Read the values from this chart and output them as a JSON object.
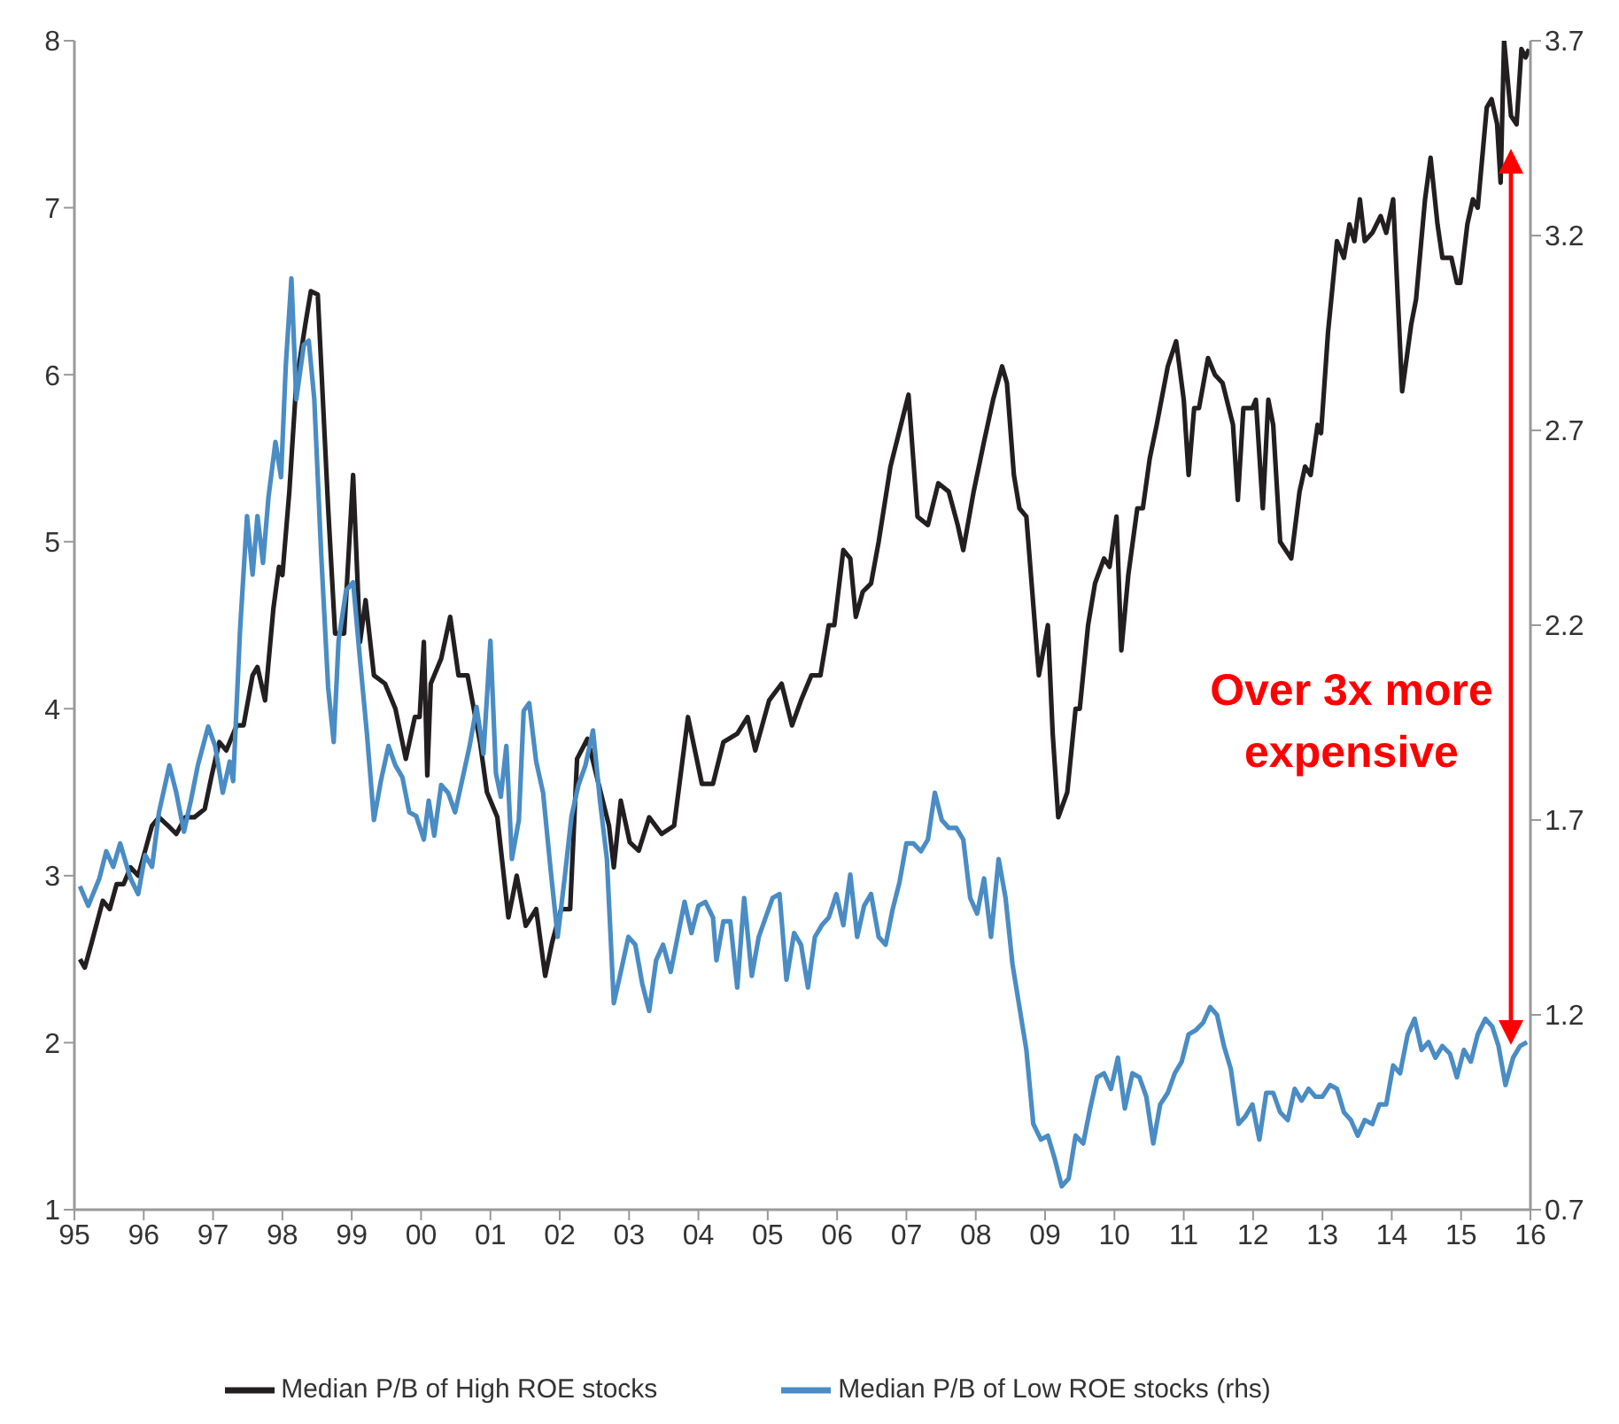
{
  "chart_data": {
    "type": "line",
    "xlim": [
      1995,
      2016
    ],
    "xticks": [
      {
        "value": 1995,
        "label": "95"
      },
      {
        "value": 1996,
        "label": "96"
      },
      {
        "value": 1997,
        "label": "97"
      },
      {
        "value": 1998,
        "label": "98"
      },
      {
        "value": 1999,
        "label": "99"
      },
      {
        "value": 2000,
        "label": "00"
      },
      {
        "value": 2001,
        "label": "01"
      },
      {
        "value": 2002,
        "label": "02"
      },
      {
        "value": 2003,
        "label": "03"
      },
      {
        "value": 2004,
        "label": "04"
      },
      {
        "value": 2005,
        "label": "05"
      },
      {
        "value": 2006,
        "label": "06"
      },
      {
        "value": 2007,
        "label": "07"
      },
      {
        "value": 2008,
        "label": "08"
      },
      {
        "value": 2009,
        "label": "09"
      },
      {
        "value": 2010,
        "label": "10"
      },
      {
        "value": 2011,
        "label": "11"
      },
      {
        "value": 2012,
        "label": "12"
      },
      {
        "value": 2013,
        "label": "13"
      },
      {
        "value": 2014,
        "label": "14"
      },
      {
        "value": 2015,
        "label": "15"
      },
      {
        "value": 2016,
        "label": "16"
      }
    ],
    "ylim": [
      1,
      8
    ],
    "yticks": [
      1,
      2,
      3,
      4,
      5,
      6,
      7,
      8
    ],
    "y2lim": [
      0.7,
      3.7
    ],
    "y2ticks": [
      0.7,
      1.2,
      1.7,
      2.2,
      2.7,
      3.2,
      3.7
    ],
    "grid": false,
    "legend": "bottom",
    "marker": "none",
    "line_style": "solid",
    "annotations": [
      "Over 3x more expensive"
    ],
    "series": [
      {
        "name": "Median P/B of High ROE stocks",
        "color": "#231f20",
        "x": [
          1995.08,
          1995.15,
          1995.25,
          1995.41,
          1995.51,
          1995.61,
          1995.71,
          1995.81,
          1995.92,
          1996.02,
          1996.12,
          1996.22,
          1996.35,
          1996.47,
          1996.6,
          1996.73,
          1996.88,
          1996.98,
          1997.09,
          1997.19,
          1997.34,
          1997.44,
          1997.57,
          1997.64,
          1997.75,
          1997.87,
          1997.95,
          1998.0,
          1998.1,
          1998.2,
          1998.33,
          1998.41,
          1998.51,
          1998.66,
          1998.76,
          1998.89,
          1999.02,
          1999.12,
          1999.2,
          1999.32,
          1999.48,
          1999.63,
          1999.73,
          1999.78,
          1999.91,
          1999.98,
          2000.04,
          2000.09,
          2000.14,
          2000.29,
          2000.42,
          2000.54,
          2000.67,
          2000.85,
          2000.95,
          2001.1,
          2001.26,
          2001.38,
          2001.51,
          2001.66,
          2001.79,
          2001.89,
          2002.02,
          2002.15,
          2002.25,
          2002.4,
          2002.53,
          2002.71,
          2002.78,
          2002.88,
          2003.01,
          2003.14,
          2003.29,
          2003.47,
          2003.65,
          2003.85,
          2004.05,
          2004.21,
          2004.36,
          2004.56,
          2004.71,
          2004.82,
          2005.02,
          2005.2,
          2005.35,
          2005.48,
          2005.63,
          2005.76,
          2005.88,
          2005.96,
          2006.09,
          2006.19,
          2006.27,
          2006.37,
          2006.49,
          2006.6,
          2006.77,
          2007.03,
          2007.16,
          2007.31,
          2007.46,
          2007.61,
          2007.74,
          2007.82,
          2007.97,
          2008.12,
          2008.25,
          2008.38,
          2008.45,
          2008.55,
          2008.63,
          2008.73,
          2008.91,
          2009.04,
          2009.11,
          2009.19,
          2009.32,
          2009.44,
          2009.5,
          2009.62,
          2009.72,
          2009.85,
          2009.93,
          2010.03,
          2010.1,
          2010.2,
          2010.33,
          2010.41,
          2010.51,
          2010.61,
          2010.77,
          2010.89,
          2011.0,
          2011.07,
          2011.15,
          2011.22,
          2011.35,
          2011.45,
          2011.56,
          2011.71,
          2011.78,
          2011.86,
          2011.99,
          2012.04,
          2012.14,
          2012.22,
          2012.29,
          2012.39,
          2012.55,
          2012.67,
          2012.75,
          2012.83,
          2012.93,
          2012.98,
          2013.08,
          2013.21,
          2013.31,
          2013.39,
          2013.46,
          2013.54,
          2013.61,
          2013.72,
          2013.84,
          2013.92,
          2014.02,
          2014.15,
          2014.28,
          2014.35,
          2014.48,
          2014.56,
          2014.66,
          2014.73,
          2014.86,
          2014.94,
          2014.99,
          2015.09,
          2015.17,
          2015.24,
          2015.37,
          2015.44,
          2015.52,
          2015.57,
          2015.62,
          2015.72,
          2015.8,
          2015.87,
          2015.93,
          2015.98
        ],
        "values": [
          2.5,
          2.45,
          2.6,
          2.85,
          2.8,
          2.95,
          2.95,
          3.05,
          3.0,
          3.15,
          3.3,
          3.35,
          3.3,
          3.25,
          3.35,
          3.35,
          3.4,
          3.6,
          3.8,
          3.75,
          3.9,
          3.9,
          4.2,
          4.25,
          4.05,
          4.6,
          4.85,
          4.8,
          5.3,
          5.95,
          6.3,
          6.5,
          6.48,
          5.2,
          4.45,
          4.45,
          5.4,
          4.4,
          4.65,
          4.2,
          4.15,
          4.0,
          3.8,
          3.7,
          3.95,
          3.95,
          4.4,
          3.6,
          4.15,
          4.3,
          4.55,
          4.2,
          4.2,
          3.8,
          3.5,
          3.35,
          2.75,
          3.0,
          2.7,
          2.8,
          2.4,
          2.6,
          2.8,
          2.8,
          3.7,
          3.82,
          3.6,
          3.3,
          3.05,
          3.45,
          3.2,
          3.15,
          3.35,
          3.25,
          3.3,
          3.95,
          3.55,
          3.55,
          3.8,
          3.85,
          3.95,
          3.75,
          4.05,
          4.15,
          3.9,
          4.05,
          4.2,
          4.2,
          4.5,
          4.5,
          4.95,
          4.9,
          4.55,
          4.7,
          4.75,
          5.0,
          5.45,
          5.88,
          5.15,
          5.1,
          5.35,
          5.3,
          5.1,
          4.95,
          5.3,
          5.6,
          5.85,
          6.05,
          5.95,
          5.4,
          5.2,
          5.15,
          4.2,
          4.5,
          3.85,
          3.35,
          3.5,
          4.0,
          4.0,
          4.5,
          4.75,
          4.9,
          4.85,
          5.15,
          4.35,
          4.8,
          5.2,
          5.2,
          5.5,
          5.7,
          6.05,
          6.2,
          5.85,
          5.4,
          5.8,
          5.8,
          6.1,
          6.0,
          5.95,
          5.7,
          5.25,
          5.8,
          5.8,
          5.85,
          5.2,
          5.85,
          5.7,
          5.0,
          4.9,
          5.3,
          5.45,
          5.4,
          5.7,
          5.65,
          6.25,
          6.8,
          6.7,
          6.9,
          6.8,
          7.05,
          6.8,
          6.85,
          6.95,
          6.85,
          7.05,
          5.9,
          6.3,
          6.45,
          7.05,
          7.3,
          6.9,
          6.7,
          6.7,
          6.55,
          6.55,
          6.9,
          7.05,
          7.0,
          7.6,
          7.65,
          7.5,
          7.15,
          8.0,
          7.55,
          7.5,
          7.95,
          7.9,
          7.95
        ]
      },
      {
        "name": "Median P/B of Low ROE stocks (rhs)",
        "color": "#4a8cc4",
        "axis": "y2",
        "x": [
          1995.08,
          1995.2,
          1995.36,
          1995.46,
          1995.56,
          1995.66,
          1995.81,
          1995.92,
          1996.02,
          1996.12,
          1996.22,
          1996.37,
          1996.47,
          1996.58,
          1996.68,
          1996.78,
          1996.93,
          1997.03,
          1997.14,
          1997.24,
          1997.29,
          1997.39,
          1997.49,
          1997.57,
          1997.64,
          1997.72,
          1997.8,
          1997.9,
          1997.98,
          1998.05,
          1998.13,
          1998.2,
          1998.31,
          1998.38,
          1998.46,
          1998.56,
          1998.66,
          1998.74,
          1998.81,
          1998.92,
          1999.02,
          1999.12,
          1999.22,
          1999.32,
          1999.42,
          1999.53,
          1999.63,
          1999.73,
          1999.83,
          1999.93,
          2000.04,
          2000.11,
          2000.19,
          2000.29,
          2000.39,
          2000.49,
          2000.59,
          2000.7,
          2000.8,
          2000.9,
          2001.0,
          2001.08,
          2001.15,
          2001.23,
          2001.31,
          2001.41,
          2001.48,
          2001.56,
          2001.66,
          2001.76,
          2001.87,
          2001.97,
          2002.07,
          2002.17,
          2002.27,
          2002.37,
          2002.48,
          2002.58,
          2002.68,
          2002.78,
          2002.88,
          2002.99,
          2003.09,
          2003.19,
          2003.29,
          2003.39,
          2003.49,
          2003.6,
          2003.7,
          2003.8,
          2003.9,
          2004.0,
          2004.1,
          2004.21,
          2004.26,
          2004.36,
          2004.46,
          2004.56,
          2004.66,
          2004.77,
          2004.87,
          2004.97,
          2005.07,
          2005.17,
          2005.27,
          2005.38,
          2005.48,
          2005.58,
          2005.68,
          2005.78,
          2005.88,
          2005.99,
          2006.09,
          2006.19,
          2006.29,
          2006.39,
          2006.49,
          2006.6,
          2006.7,
          2006.8,
          2006.9,
          2007.0,
          2007.1,
          2007.21,
          2007.31,
          2007.41,
          2007.51,
          2007.61,
          2007.72,
          2007.82,
          2007.92,
          2008.02,
          2008.12,
          2008.22,
          2008.33,
          2008.43,
          2008.53,
          2008.63,
          2008.73,
          2008.83,
          2008.94,
          2009.04,
          2009.14,
          2009.24,
          2009.34,
          2009.44,
          2009.55,
          2009.65,
          2009.75,
          2009.85,
          2009.95,
          2010.05,
          2010.15,
          2010.26,
          2010.36,
          2010.46,
          2010.56,
          2010.66,
          2010.77,
          2010.87,
          2010.97,
          2011.07,
          2011.17,
          2011.28,
          2011.38,
          2011.48,
          2011.58,
          2011.68,
          2011.79,
          2011.89,
          2011.99,
          2012.09,
          2012.19,
          2012.29,
          2012.39,
          2012.5,
          2012.6,
          2012.7,
          2012.8,
          2012.9,
          2013.0,
          2013.11,
          2013.21,
          2013.31,
          2013.41,
          2013.51,
          2013.61,
          2013.72,
          2013.82,
          2013.92,
          2014.02,
          2014.12,
          2014.23,
          2014.33,
          2014.43,
          2014.53,
          2014.63,
          2014.73,
          2014.84,
          2014.94,
          2015.04,
          2015.14,
          2015.24,
          2015.35,
          2015.45,
          2015.54,
          2015.64,
          2015.75,
          2015.85,
          2015.95
        ],
        "values": [
          1.53,
          1.48,
          1.55,
          1.62,
          1.58,
          1.64,
          1.55,
          1.51,
          1.61,
          1.58,
          1.72,
          1.84,
          1.77,
          1.67,
          1.75,
          1.84,
          1.94,
          1.89,
          1.77,
          1.85,
          1.8,
          2.19,
          2.48,
          2.33,
          2.48,
          2.36,
          2.53,
          2.67,
          2.58,
          2.87,
          3.09,
          2.78,
          2.92,
          2.93,
          2.78,
          2.38,
          2.04,
          1.9,
          2.16,
          2.29,
          2.31,
          2.11,
          1.92,
          1.7,
          1.8,
          1.89,
          1.84,
          1.81,
          1.72,
          1.71,
          1.65,
          1.75,
          1.66,
          1.79,
          1.77,
          1.72,
          1.8,
          1.89,
          1.99,
          1.87,
          2.16,
          1.82,
          1.76,
          1.89,
          1.6,
          1.7,
          1.98,
          2.0,
          1.85,
          1.77,
          1.57,
          1.4,
          1.55,
          1.71,
          1.79,
          1.84,
          1.93,
          1.75,
          1.6,
          1.23,
          1.31,
          1.4,
          1.38,
          1.28,
          1.21,
          1.34,
          1.38,
          1.31,
          1.4,
          1.49,
          1.41,
          1.48,
          1.49,
          1.45,
          1.34,
          1.44,
          1.44,
          1.27,
          1.5,
          1.3,
          1.4,
          1.45,
          1.5,
          1.51,
          1.29,
          1.41,
          1.38,
          1.27,
          1.4,
          1.43,
          1.45,
          1.51,
          1.43,
          1.56,
          1.4,
          1.48,
          1.51,
          1.4,
          1.38,
          1.47,
          1.54,
          1.64,
          1.64,
          1.62,
          1.65,
          1.77,
          1.7,
          1.68,
          1.68,
          1.65,
          1.5,
          1.46,
          1.55,
          1.4,
          1.6,
          1.5,
          1.33,
          1.22,
          1.11,
          0.92,
          0.88,
          0.89,
          0.83,
          0.76,
          0.78,
          0.89,
          0.87,
          0.96,
          1.04,
          1.05,
          1.01,
          1.09,
          0.96,
          1.05,
          1.04,
          0.99,
          0.87,
          0.97,
          1.0,
          1.05,
          1.08,
          1.15,
          1.16,
          1.18,
          1.22,
          1.2,
          1.12,
          1.06,
          0.92,
          0.94,
          0.97,
          0.88,
          1.0,
          1.0,
          0.95,
          0.93,
          1.01,
          0.98,
          1.01,
          0.99,
          0.99,
          1.02,
          1.01,
          0.95,
          0.93,
          0.89,
          0.93,
          0.92,
          0.97,
          0.97,
          1.07,
          1.05,
          1.15,
          1.19,
          1.11,
          1.13,
          1.09,
          1.12,
          1.1,
          1.04,
          1.11,
          1.08,
          1.15,
          1.19,
          1.17,
          1.12,
          1.02,
          1.09,
          1.12,
          1.13
        ]
      }
    ]
  }
}
